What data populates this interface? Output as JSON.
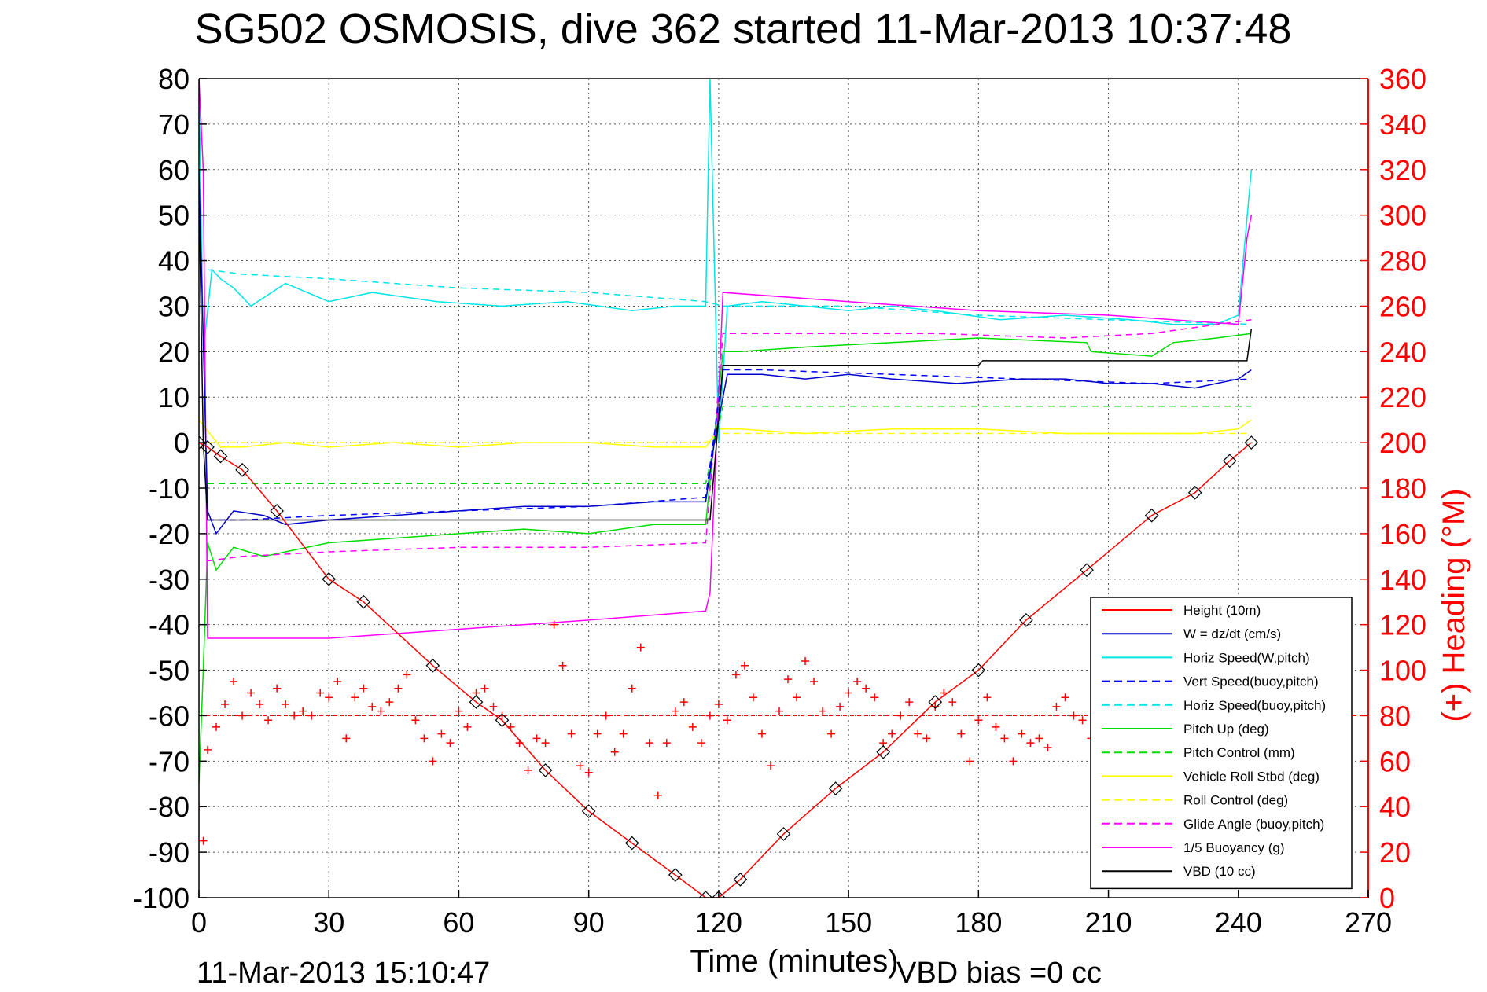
{
  "chart_data": {
    "type": "line",
    "title": "SG502 OSMOSIS, dive 362 started 11-Mar-2013 10:37:48",
    "xlabel": "Time (minutes)",
    "ylabel": "",
    "ylabel_right": "(+) Heading (°M)",
    "xlim": [
      0,
      270
    ],
    "ylim": [
      -100,
      80
    ],
    "ylim_right": [
      0,
      360
    ],
    "x_ticks": [
      "0",
      "30",
      "60",
      "90",
      "120",
      "150",
      "180",
      "210",
      "240",
      "270"
    ],
    "y_ticks": [
      "80",
      "70",
      "60",
      "50",
      "40",
      "30",
      "20",
      "10",
      "0",
      "-10",
      "-20",
      "-30",
      "-40",
      "-50",
      "-60",
      "-70",
      "-80",
      "-90",
      "-100"
    ],
    "y_ticks_right": [
      "360",
      "340",
      "320",
      "300",
      "280",
      "260",
      "240",
      "220",
      "200",
      "180",
      "160",
      "140",
      "120",
      "100",
      "80",
      "60",
      "40",
      "20",
      "0"
    ],
    "grid": true,
    "legend_position": "bottom-right",
    "footer_left": "11-Mar-2013 15:10:47",
    "footer_right": "VBD bias =0 cc",
    "legend": [
      {
        "name": "Height (10m)",
        "color": "#ff0000",
        "dash": "solid"
      },
      {
        "name": "W = dz/dt (cm/s)",
        "color": "#0000cc",
        "dash": "solid"
      },
      {
        "name": "Horiz Speed(W,pitch)",
        "color": "#00e5e5",
        "dash": "solid"
      },
      {
        "name": "Vert Speed(buoy,pitch)",
        "color": "#0000ff",
        "dash": "dashed"
      },
      {
        "name": "Horiz Speed(buoy,pitch)",
        "color": "#00e5e5",
        "dash": "dashed"
      },
      {
        "name": "Pitch Up (deg)",
        "color": "#00dd00",
        "dash": "solid"
      },
      {
        "name": "Pitch Control (mm)",
        "color": "#00dd00",
        "dash": "dashed"
      },
      {
        "name": "Vehicle Roll Stbd (deg)",
        "color": "#ffff00",
        "dash": "solid"
      },
      {
        "name": "Roll Control (deg)",
        "color": "#ffff00",
        "dash": "dashed"
      },
      {
        "name": "Glide Angle (buoy,pitch)",
        "color": "#ff00ff",
        "dash": "dashed"
      },
      {
        "name": "1/5 Buoyancy (g)",
        "color": "#ff00ff",
        "dash": "solid"
      },
      {
        "name": "VBD (10 cc)",
        "color": "#000000",
        "dash": "solid"
      }
    ],
    "series": [
      {
        "name": "Height (10m)",
        "color": "#ff0000",
        "x": [
          0,
          2,
          5,
          10,
          18,
          30,
          38,
          54,
          64,
          70,
          80,
          90,
          100,
          110,
          117,
          120,
          125,
          135,
          147,
          158,
          170,
          180,
          191,
          205,
          220,
          230,
          238,
          243
        ],
        "y": [
          0,
          -1,
          -3,
          -6,
          -15,
          -30,
          -35,
          -49,
          -57,
          -61,
          -72,
          -81,
          -88,
          -95,
          -100,
          -100,
          -96,
          -86,
          -76,
          -68,
          -57,
          -50,
          -39,
          -28,
          -16,
          -11,
          -4,
          0
        ]
      },
      {
        "name": "W = dz/dt (cm/s)",
        "color": "#0000cc",
        "x": [
          0,
          2,
          4,
          8,
          15,
          20,
          30,
          45,
          60,
          75,
          90,
          105,
          117,
          119,
          122,
          130,
          140,
          150,
          160,
          175,
          190,
          200,
          210,
          220,
          230,
          240,
          243
        ],
        "y": [
          60,
          -15,
          -20,
          -15,
          -16,
          -18,
          -17,
          -16,
          -15,
          -14,
          -14,
          -13,
          -13,
          0,
          15,
          15,
          14,
          15,
          14,
          13,
          14,
          14,
          13,
          13,
          12,
          14,
          16
        ]
      },
      {
        "name": "Horiz Speed(W,pitch)",
        "color": "#00e5e5",
        "x": [
          0,
          1,
          3,
          5,
          8,
          12,
          20,
          30,
          40,
          55,
          70,
          85,
          100,
          110,
          117,
          118,
          120,
          122,
          130,
          140,
          150,
          160,
          170,
          185,
          200,
          215,
          225,
          235,
          240,
          243
        ],
        "y": [
          80,
          20,
          38,
          36,
          34,
          30,
          35,
          31,
          33,
          31,
          30,
          31,
          29,
          30,
          30,
          80,
          0,
          30,
          31,
          30,
          29,
          30,
          29,
          27,
          28,
          27,
          26,
          26,
          28,
          60
        ]
      },
      {
        "name": "Vert Speed(buoy,pitch)",
        "color": "#0000ff",
        "dash": "8,6",
        "x": [
          2,
          10,
          30,
          60,
          90,
          117,
          121,
          130,
          160,
          190,
          220,
          243
        ],
        "y": [
          -17,
          -17,
          -16,
          -15,
          -14,
          -12,
          16,
          16,
          15,
          14,
          13,
          14
        ]
      },
      {
        "name": "Horiz Speed(buoy,pitch)",
        "color": "#00e5e5",
        "dash": "8,6",
        "x": [
          2,
          10,
          30,
          60,
          90,
          117,
          121,
          150,
          180,
          210,
          243
        ],
        "y": [
          38,
          37,
          36,
          34,
          33,
          31,
          30,
          30,
          28,
          27,
          26
        ]
      },
      {
        "name": "Pitch Up (deg)",
        "color": "#00dd00",
        "x": [
          0,
          1,
          2,
          4,
          8,
          15,
          20,
          30,
          45,
          60,
          75,
          90,
          105,
          117,
          121,
          125,
          140,
          160,
          180,
          205,
          206,
          220,
          225,
          235,
          243
        ],
        "y": [
          -75,
          -50,
          -22,
          -28,
          -23,
          -25,
          -24,
          -22,
          -21,
          -20,
          -19,
          -20,
          -18,
          -18,
          20,
          20,
          21,
          22,
          23,
          22,
          20,
          19,
          22,
          23,
          24
        ]
      },
      {
        "name": "Pitch Control (mm)",
        "color": "#00dd00",
        "dash": "8,6",
        "x": [
          2,
          117,
          121,
          243
        ],
        "y": [
          -9,
          -9,
          8,
          8
        ]
      },
      {
        "name": "Vehicle Roll Stbd (deg)",
        "color": "#ffff00",
        "x": [
          0,
          5,
          10,
          20,
          30,
          45,
          60,
          75,
          90,
          105,
          117,
          120,
          125,
          140,
          160,
          180,
          200,
          220,
          230,
          240,
          243
        ],
        "y": [
          5,
          -1,
          -1,
          0,
          -1,
          0,
          -1,
          0,
          0,
          -1,
          -1,
          3,
          3,
          2,
          3,
          3,
          2,
          2,
          2,
          3,
          5
        ]
      },
      {
        "name": "Roll Control (deg)",
        "color": "#ffff00",
        "dash": "8,6",
        "x": [
          2,
          117,
          121,
          243
        ],
        "y": [
          0,
          0,
          2,
          2
        ]
      },
      {
        "name": "Glide Angle (buoy,pitch)",
        "color": "#ff00ff",
        "dash": "8,6",
        "x": [
          2,
          10,
          30,
          60,
          90,
          117,
          121,
          140,
          170,
          200,
          220,
          243
        ],
        "y": [
          -26,
          -25,
          -24,
          -23,
          -23,
          -22,
          24,
          24,
          24,
          23,
          24,
          27
        ]
      },
      {
        "name": "1/5 Buoyancy (g)",
        "color": "#ff00ff",
        "x": [
          0,
          1,
          2,
          10,
          30,
          60,
          90,
          117,
          118,
          121,
          150,
          180,
          210,
          240,
          242,
          243
        ],
        "y": [
          80,
          60,
          -43,
          -43,
          -43,
          -41,
          -39,
          -37,
          -33,
          33,
          31,
          29,
          28,
          26,
          45,
          50
        ]
      },
      {
        "name": "VBD (10 cc)",
        "color": "#000000",
        "x": [
          0,
          1,
          2,
          117,
          118,
          121,
          180,
          181,
          240,
          242,
          243
        ],
        "y": [
          55,
          0,
          -17,
          -17,
          -17,
          17,
          17,
          18,
          18,
          18,
          25
        ]
      }
    ],
    "heading_series": {
      "name": "(+) Heading",
      "color": "#ff0000",
      "marker": "+",
      "axis": "right",
      "reference_line": 80,
      "x": [
        0,
        1,
        2,
        4,
        6,
        8,
        10,
        12,
        14,
        16,
        18,
        20,
        22,
        24,
        26,
        28,
        30,
        32,
        34,
        36,
        38,
        40,
        42,
        44,
        46,
        48,
        50,
        52,
        54,
        56,
        58,
        60,
        62,
        64,
        66,
        68,
        70,
        72,
        74,
        76,
        78,
        80,
        82,
        84,
        86,
        88,
        90,
        92,
        94,
        96,
        98,
        100,
        102,
        104,
        106,
        108,
        110,
        112,
        114,
        116,
        118,
        120,
        122,
        124,
        126,
        128,
        130,
        132,
        134,
        136,
        138,
        140,
        142,
        144,
        146,
        148,
        150,
        152,
        154,
        156,
        158,
        160,
        162,
        164,
        166,
        168,
        170,
        172,
        174,
        176,
        178,
        180,
        182,
        184,
        186,
        188,
        190,
        192,
        194,
        196,
        198,
        200,
        202,
        204,
        206,
        208,
        210,
        212,
        214,
        216,
        218,
        220,
        222,
        224,
        226,
        228,
        230,
        232,
        234,
        236,
        238,
        240,
        242
      ],
      "y": [
        40,
        25,
        65,
        75,
        85,
        95,
        80,
        90,
        85,
        78,
        92,
        85,
        80,
        82,
        80,
        90,
        88,
        95,
        70,
        88,
        92,
        84,
        82,
        86,
        92,
        98,
        78,
        70,
        60,
        72,
        68,
        82,
        75,
        90,
        92,
        84,
        80,
        75,
        68,
        56,
        70,
        68,
        120,
        102,
        72,
        58,
        55,
        72,
        80,
        64,
        72,
        92,
        110,
        68,
        45,
        68,
        82,
        86,
        75,
        68,
        80,
        85,
        78,
        98,
        102,
        88,
        72,
        58,
        82,
        96,
        88,
        104,
        95,
        82,
        72,
        84,
        90,
        95,
        92,
        88,
        68,
        72,
        80,
        86,
        72,
        70,
        84,
        90,
        86,
        72,
        60,
        78,
        88,
        75,
        70,
        60,
        72,
        68,
        70,
        66,
        84,
        88,
        80,
        78,
        70,
        60,
        64,
        74,
        88,
        86,
        76,
        58,
        68,
        72,
        76,
        84,
        82,
        70,
        80,
        75,
        72,
        80,
        92
      ]
    }
  }
}
